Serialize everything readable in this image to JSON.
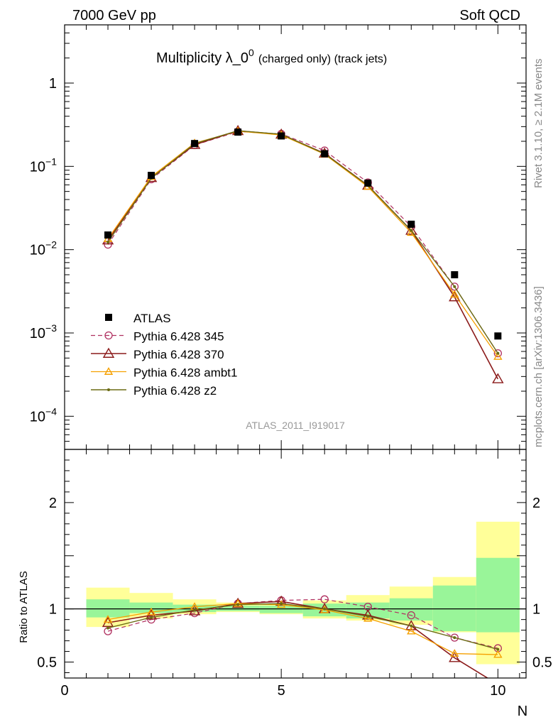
{
  "header": {
    "left_label": "7000 GeV pp",
    "right_label": "Soft QCD",
    "title_main": "Multiplicity λ_0",
    "title_sup": "0",
    "title_sub": "(charged only) (track jets)"
  },
  "side_labels": {
    "rivet": "Rivet 3.1.10, ≥ 2.1M events",
    "mcplots": "mcplots.cern.ch [arXiv:1306.3436]"
  },
  "watermark": "ATLAS_2011_I919017",
  "xlabel": "N",
  "ratio_ylabel": "Ratio to ATLAS",
  "colors": {
    "data": "#000000",
    "p345": "#b03060",
    "p370": "#8b1a1a",
    "ambt1": "#f5a000",
    "z2": "#6b6b14",
    "band_inner": "#99f599",
    "band_outer": "#ffff99"
  },
  "chart_data": [
    {
      "type": "line",
      "yscale": "log",
      "xlim": [
        0,
        10.65
      ],
      "ylim": [
        4e-05,
        5
      ],
      "x_ticks": [
        "0",
        "5",
        "10"
      ],
      "y_tick_labels": [
        {
          "base": "10",
          "exp": "−4"
        },
        {
          "base": "10",
          "exp": "−3"
        },
        {
          "base": "10",
          "exp": "−2"
        },
        {
          "base": "10",
          "exp": "−1"
        },
        {
          "base": "1",
          "exp": ""
        }
      ],
      "legend_position": "lower-left",
      "x": [
        1,
        2,
        3,
        4,
        5,
        6,
        7,
        8,
        9,
        10
      ],
      "data": {
        "name": "ATLAS",
        "values": [
          0.015,
          0.078,
          0.188,
          0.258,
          0.232,
          0.142,
          0.063,
          0.0202,
          0.005,
          0.00092
        ]
      },
      "series": [
        {
          "name": "Pythia 6.428 345",
          "key": "p345",
          "values": [
            0.0115,
            0.07,
            0.18,
            0.262,
            0.245,
            0.155,
            0.064,
            0.0189,
            0.0036,
            0.00057
          ]
        },
        {
          "name": "Pythia 6.428 370",
          "key": "p370",
          "values": [
            0.013,
            0.073,
            0.182,
            0.267,
            0.242,
            0.143,
            0.059,
            0.017,
            0.0027,
            0.00028
          ]
        },
        {
          "name": "Pythia 6.428 ambt1",
          "key": "ambt1",
          "values": [
            0.0135,
            0.075,
            0.19,
            0.265,
            0.238,
            0.14,
            0.057,
            0.016,
            0.0029,
            0.00052
          ]
        },
        {
          "name": "Pythia 6.428 z2",
          "key": "z2",
          "values": [
            0.0123,
            0.072,
            0.187,
            0.268,
            0.243,
            0.142,
            0.059,
            0.017,
            0.0036,
            0.00057
          ]
        }
      ]
    },
    {
      "type": "line",
      "ylabel": "Ratio to ATLAS",
      "xlabel": "N",
      "xlim": [
        0,
        10.65
      ],
      "ylim": [
        0.35,
        2.5
      ],
      "y_ticks": [
        "0.5",
        "1",
        "2"
      ],
      "x_ticks": [
        "0",
        "5",
        "10"
      ],
      "x": [
        1,
        2,
        3,
        4,
        5,
        6,
        7,
        8,
        9,
        10
      ],
      "band_inner": [
        [
          0.92,
          1.09
        ],
        [
          0.96,
          1.06
        ],
        [
          0.97,
          1.04
        ],
        [
          0.98,
          1.03
        ],
        [
          0.96,
          1.03
        ],
        [
          0.93,
          1.05
        ],
        [
          0.91,
          1.06
        ],
        [
          0.89,
          1.1
        ],
        [
          0.79,
          1.22
        ],
        [
          0.78,
          1.48
        ]
      ],
      "band_outer": [
        [
          0.83,
          1.2
        ],
        [
          0.91,
          1.15
        ],
        [
          0.95,
          1.09
        ],
        [
          0.97,
          1.06
        ],
        [
          0.95,
          1.04
        ],
        [
          0.91,
          1.08
        ],
        [
          0.89,
          1.13
        ],
        [
          0.85,
          1.21
        ],
        [
          0.78,
          1.3
        ],
        [
          0.48,
          1.82
        ]
      ],
      "series": [
        {
          "key": "p345",
          "values": [
            0.79,
            0.9,
            0.96,
            1.05,
            1.08,
            1.09,
            1.02,
            0.94,
            0.73,
            0.63
          ]
        },
        {
          "key": "p370",
          "values": [
            0.87,
            0.94,
            0.98,
            1.05,
            1.07,
            1.0,
            0.94,
            0.84,
            0.54,
            0.29
          ]
        },
        {
          "key": "ambt1",
          "values": [
            0.9,
            0.97,
            1.02,
            1.05,
            1.04,
            0.99,
            0.91,
            0.79,
            0.58,
            0.57
          ]
        },
        {
          "key": "z2",
          "values": [
            0.82,
            0.92,
            0.99,
            1.04,
            1.05,
            1.0,
            0.93,
            0.84,
            0.73,
            0.62
          ]
        }
      ]
    }
  ]
}
